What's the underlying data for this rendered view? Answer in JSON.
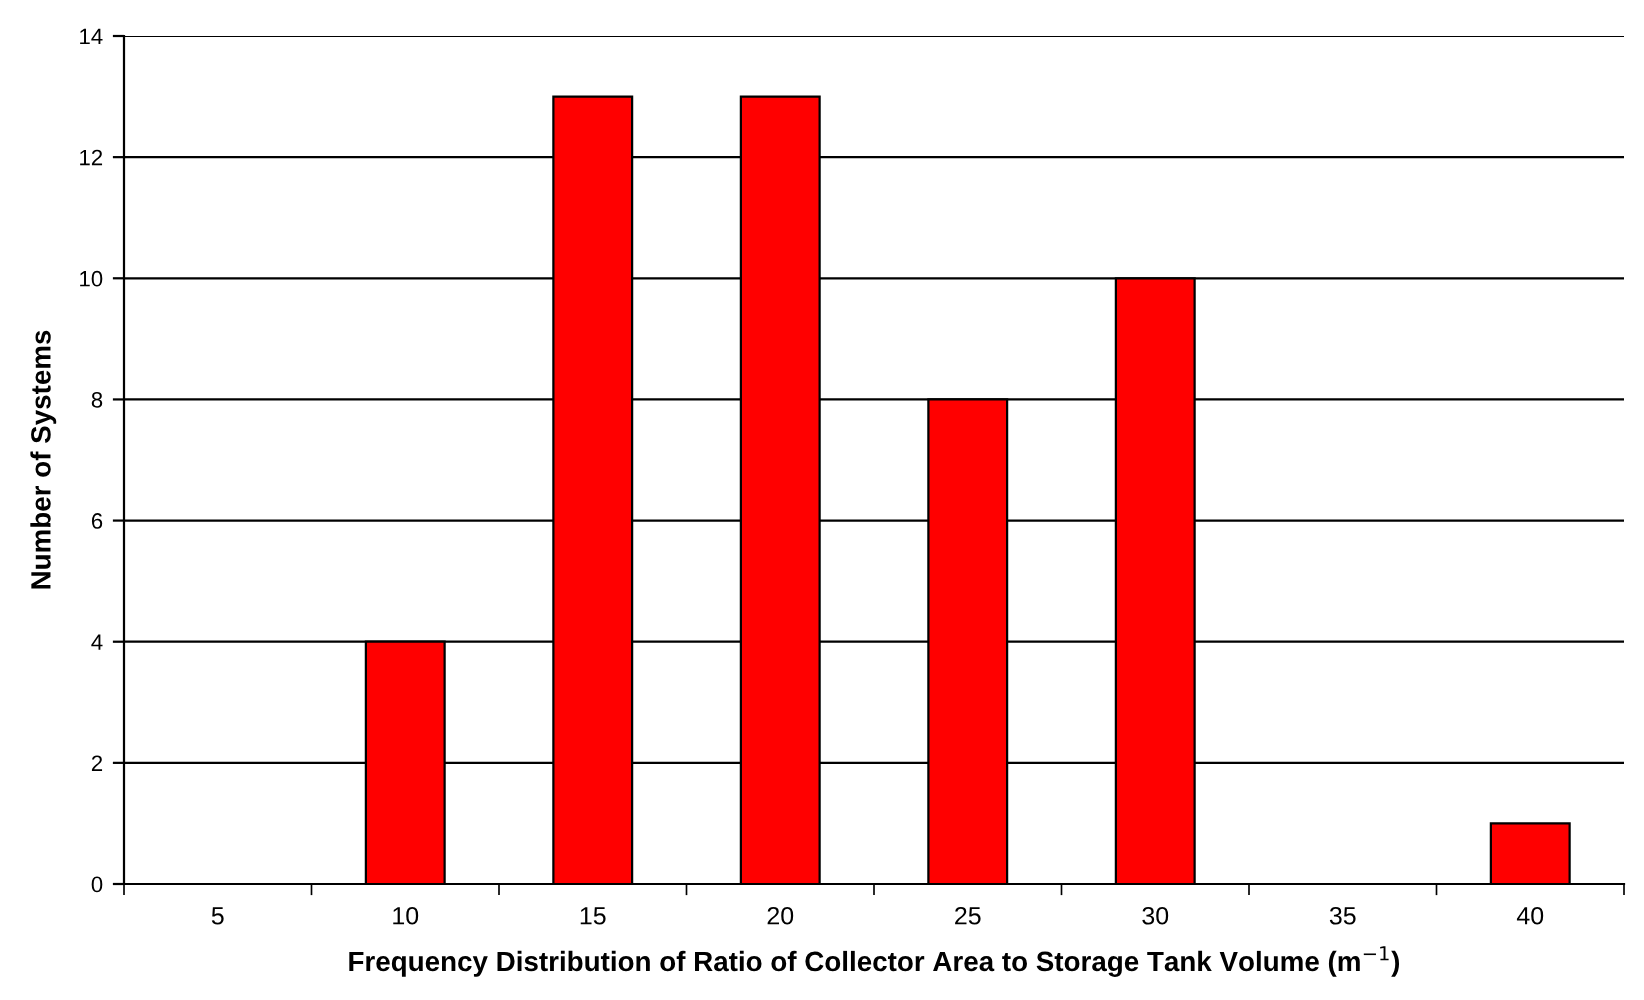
{
  "chart_data": {
    "type": "bar",
    "xlabel": "Frequency Distribution of Ratio of Collector Area to Storage Tank Volume (m$^{−1}$)",
    "ylabel": "Number of Systems",
    "categories": [
      "5",
      "10",
      "15",
      "20",
      "25",
      "30",
      "35",
      "40"
    ],
    "values": [
      0,
      4,
      13,
      13,
      8,
      10,
      0,
      1
    ],
    "color": "#ff0000",
    "ylim": [
      0,
      14
    ],
    "yticks": [
      0,
      2,
      4,
      6,
      8,
      10,
      12,
      14
    ],
    "grid": "y"
  }
}
